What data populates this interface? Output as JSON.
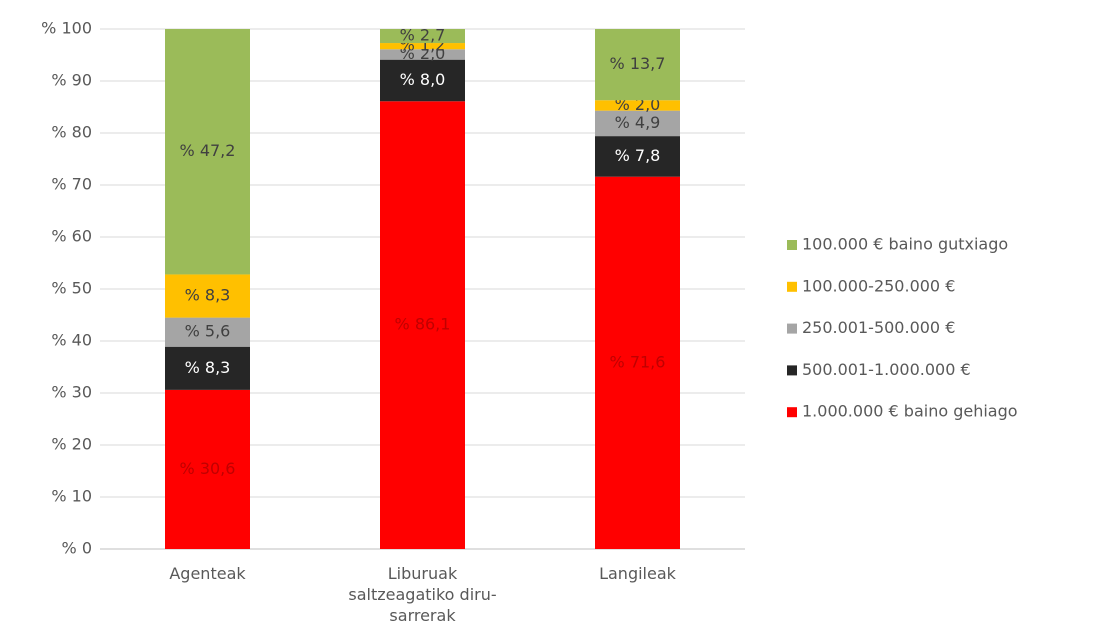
{
  "chart_data": {
    "type": "stacked_bar",
    "categories": [
      "Agenteak",
      "Liburuak saltzeagatiko diru-sarrerak",
      "Langileak"
    ],
    "series": [
      {
        "name": "1.000.000 € baino gehiago",
        "color": "#ff0000",
        "label_color": "#c00000",
        "values": [
          30.6,
          86.1,
          71.6
        ],
        "value_labels": [
          "% 30,6",
          "% 86,1",
          "% 71,6"
        ]
      },
      {
        "name": "500.001-1.000.000 €",
        "color": "#262626",
        "label_color": "#ffffff",
        "values": [
          8.3,
          8.0,
          7.8
        ],
        "value_labels": [
          "% 8,3",
          "% 8,0",
          "% 7,8"
        ]
      },
      {
        "name": "250.001-500.000 €",
        "color": "#a5a5a5",
        "label_color": "#404040",
        "values": [
          5.6,
          2.0,
          4.9
        ],
        "value_labels": [
          "% 5,6",
          "% 2,0",
          "% 4,9"
        ]
      },
      {
        "name": "100.000-250.000 €",
        "color": "#ffc000",
        "label_color": "#404040",
        "values": [
          8.3,
          1.2,
          2.0
        ],
        "value_labels": [
          "% 8,3",
          "% 1,2",
          "% 2,0"
        ]
      },
      {
        "name": "100.000 € baino gutxiago",
        "color": "#9bbb59",
        "label_color": "#404040",
        "values": [
          47.2,
          2.7,
          13.7
        ],
        "value_labels": [
          "% 47,2",
          "% 2,7",
          "% 13,7"
        ]
      }
    ],
    "ylim": [
      0,
      100
    ],
    "yticks": [
      {
        "value": 0,
        "label": "% 0"
      },
      {
        "value": 10,
        "label": "% 10"
      },
      {
        "value": 20,
        "label": "% 20"
      },
      {
        "value": 30,
        "label": "% 30"
      },
      {
        "value": 40,
        "label": "% 40"
      },
      {
        "value": 50,
        "label": "% 50"
      },
      {
        "value": 60,
        "label": "% 60"
      },
      {
        "value": 70,
        "label": "% 70"
      },
      {
        "value": 80,
        "label": "% 80"
      },
      {
        "value": 90,
        "label": "% 90"
      },
      {
        "value": 100,
        "label": "% 100"
      }
    ],
    "grid": true,
    "legend": "right"
  }
}
